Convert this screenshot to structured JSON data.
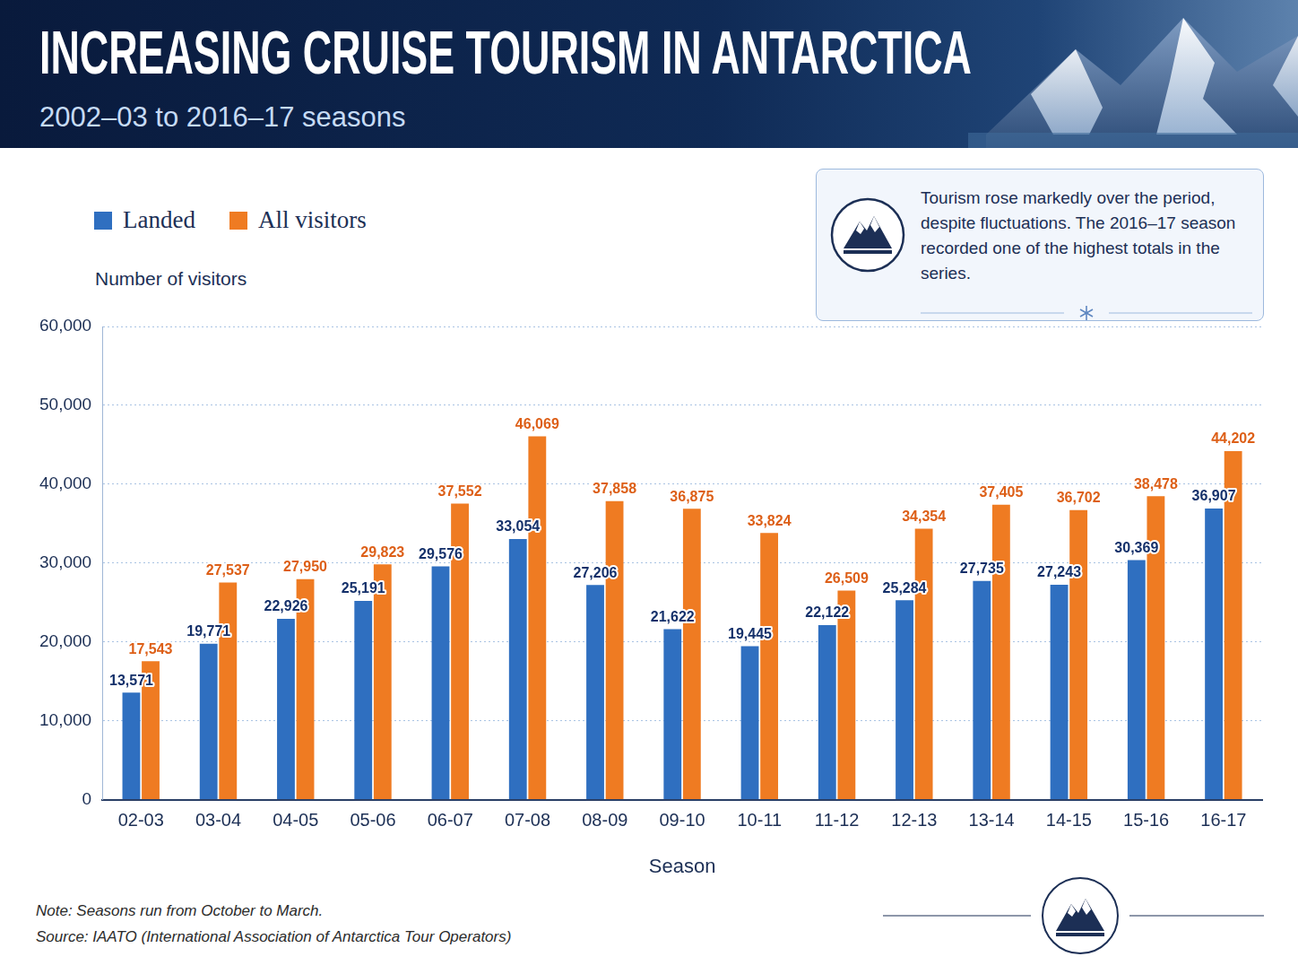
{
  "chart_data": {
    "type": "bar",
    "title": "INCREASING CRUISE TOURISM IN ANTARCTICA",
    "subtitle": "2002–03 to 2016–17 seasons",
    "y_label": "Number of visitors",
    "x_label": "Season",
    "annotation": "Tourism rose markedly over the period, despite fluctuations. The 2016–17 season recorded one of the highest totals in the series.",
    "note": "Note: Seasons run from October to March.",
    "source": "Source: IAATO (International Association of Antarctica Tour Operators)",
    "categories": [
      "02-03",
      "03-04",
      "04-05",
      "05-06",
      "06-07",
      "07-08",
      "08-09",
      "09-10",
      "10-11",
      "11-12",
      "12-13",
      "13-14",
      "14-15",
      "15-16",
      "16-17"
    ],
    "series": [
      {
        "name": "Landed",
        "color": "#2f6fc0",
        "values": [
          13571,
          19771,
          22926,
          25191,
          29576,
          33054,
          27206,
          21622,
          19445,
          22122,
          25284,
          27735,
          27243,
          30369,
          36907
        ],
        "value_labels": [
          "13,571",
          "19,771",
          "22,926",
          "25,191",
          "29,576",
          "33,054",
          "27,206",
          "21,622",
          "19,445",
          "22,122",
          "25,284",
          "27,735",
          "27,243",
          "30,369",
          "36,907"
        ]
      },
      {
        "name": "All visitors",
        "color": "#ef7b22",
        "values": [
          17543,
          27537,
          27950,
          29823,
          37552,
          46069,
          37858,
          36875,
          33824,
          26509,
          34354,
          37405,
          36702,
          38478,
          44202
        ],
        "value_labels": [
          "17,543",
          "27,537",
          "27,950",
          "29,823",
          "37,552",
          "46,069",
          "37,858",
          "36,875",
          "33,824",
          "26,509",
          "34,354",
          "37,405",
          "36,702",
          "38,478",
          "44,202"
        ]
      }
    ],
    "ylim": [
      0,
      60000
    ],
    "yticks": [
      0,
      {
        "value": 10000,
        "label": "10,000"
      },
      {
        "value": 20000,
        "label": "20,000"
      },
      {
        "value": 30000,
        "label": "30,000"
      },
      {
        "value": 40000,
        "label": "40,000"
      },
      {
        "value": 50000,
        "label": "50,000"
      },
      {
        "value": 60000,
        "label": "60,000"
      }
    ],
    "grid": true,
    "legend": "top-left",
    "data_labels": true
  }
}
